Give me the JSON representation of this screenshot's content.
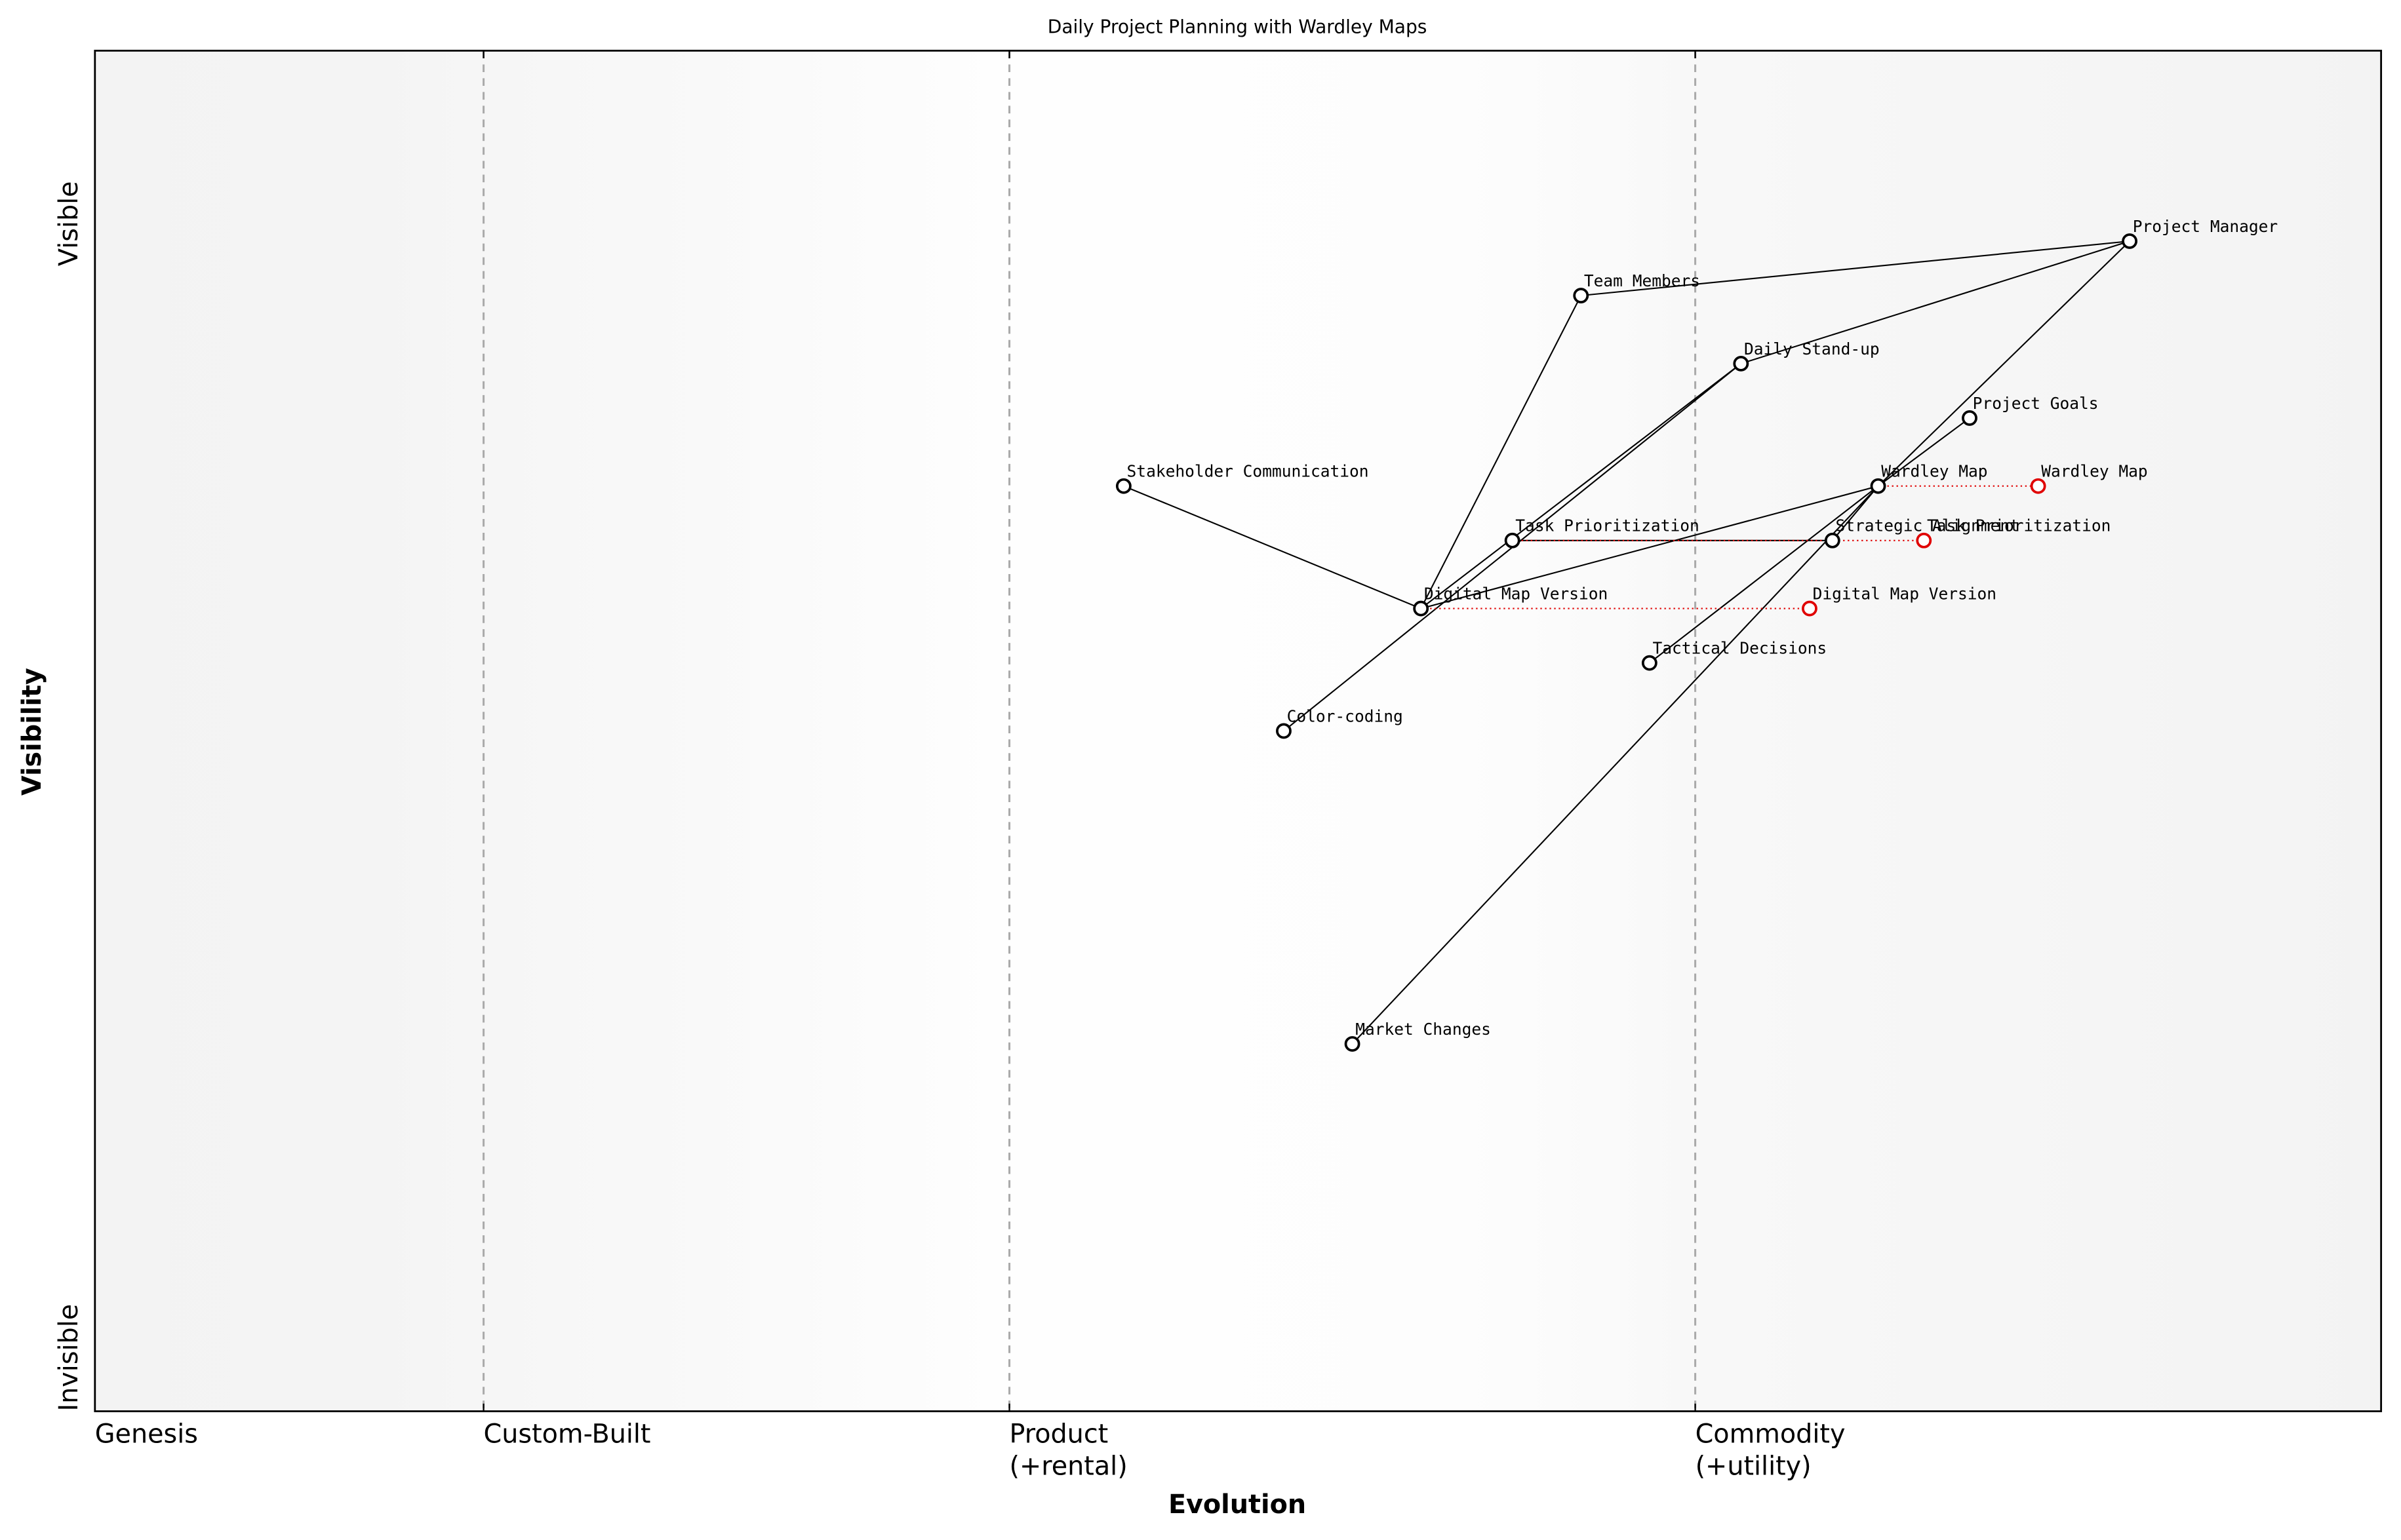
{
  "chart_data": {
    "type": "wardley",
    "title": "Daily Project Planning with Wardley Maps",
    "x_label": "Evolution",
    "y_label": "Visibility",
    "y_top_label": "Visible",
    "y_bottom_label": "Invisible",
    "xlim": [
      0,
      1
    ],
    "ylim": [
      0,
      1
    ],
    "stages": [
      {
        "value": 0,
        "label": [
          "Genesis"
        ]
      },
      {
        "value": 0.17,
        "label": [
          "Custom-Built"
        ]
      },
      {
        "value": 0.4,
        "label": [
          "Product",
          "(+rental)"
        ]
      },
      {
        "value": 0.7,
        "label": [
          "Commodity",
          "(+utility)"
        ]
      }
    ],
    "components": [
      {
        "name": "Project Manager",
        "x": 0.89,
        "y": 0.86
      },
      {
        "name": "Team Members",
        "x": 0.65,
        "y": 0.82
      },
      {
        "name": "Daily Stand-up",
        "x": 0.72,
        "y": 0.77
      },
      {
        "name": "Project Goals",
        "x": 0.82,
        "y": 0.73
      },
      {
        "name": "Wardley Map",
        "x": 0.78,
        "y": 0.68
      },
      {
        "name": "Stakeholder Communication",
        "x": 0.45,
        "y": 0.68
      },
      {
        "name": "Task Prioritization",
        "x": 0.62,
        "y": 0.64
      },
      {
        "name": "Strategic Alignment",
        "x": 0.76,
        "y": 0.64
      },
      {
        "name": "Digital Map Version",
        "x": 0.58,
        "y": 0.59
      },
      {
        "name": "Tactical Decisions",
        "x": 0.68,
        "y": 0.55
      },
      {
        "name": "Color-coding",
        "x": 0.52,
        "y": 0.5
      },
      {
        "name": "Market Changes",
        "x": 0.55,
        "y": 0.27
      }
    ],
    "evolved": [
      {
        "name": "Wardley Map",
        "x": 0.85,
        "y": 0.68
      },
      {
        "name": "Task Prioritization",
        "x": 0.8,
        "y": 0.64
      },
      {
        "name": "Digital Map Version",
        "x": 0.75,
        "y": 0.59
      }
    ],
    "links": [
      [
        "Project Manager",
        "Team Members"
      ],
      [
        "Project Manager",
        "Daily Stand-up"
      ],
      [
        "Project Manager",
        "Wardley Map"
      ],
      [
        "Wardley Map",
        "Market Changes"
      ],
      [
        "Team Members",
        "Digital Map Version"
      ],
      [
        "Daily Stand-up",
        "Color-coding"
      ],
      [
        "Daily Stand-up",
        "Digital Map Version"
      ],
      [
        "Project Goals",
        "Wardley Map"
      ],
      [
        "Wardley Map",
        "Strategic Alignment"
      ],
      [
        "Wardley Map",
        "Tactical Decisions"
      ],
      [
        "Wardley Map",
        "Digital Map Version"
      ],
      [
        "Task Prioritization",
        "Strategic Alignment"
      ],
      [
        "Stakeholder Communication",
        "Digital Map Version"
      ]
    ],
    "evolve_color": "#e00000"
  }
}
